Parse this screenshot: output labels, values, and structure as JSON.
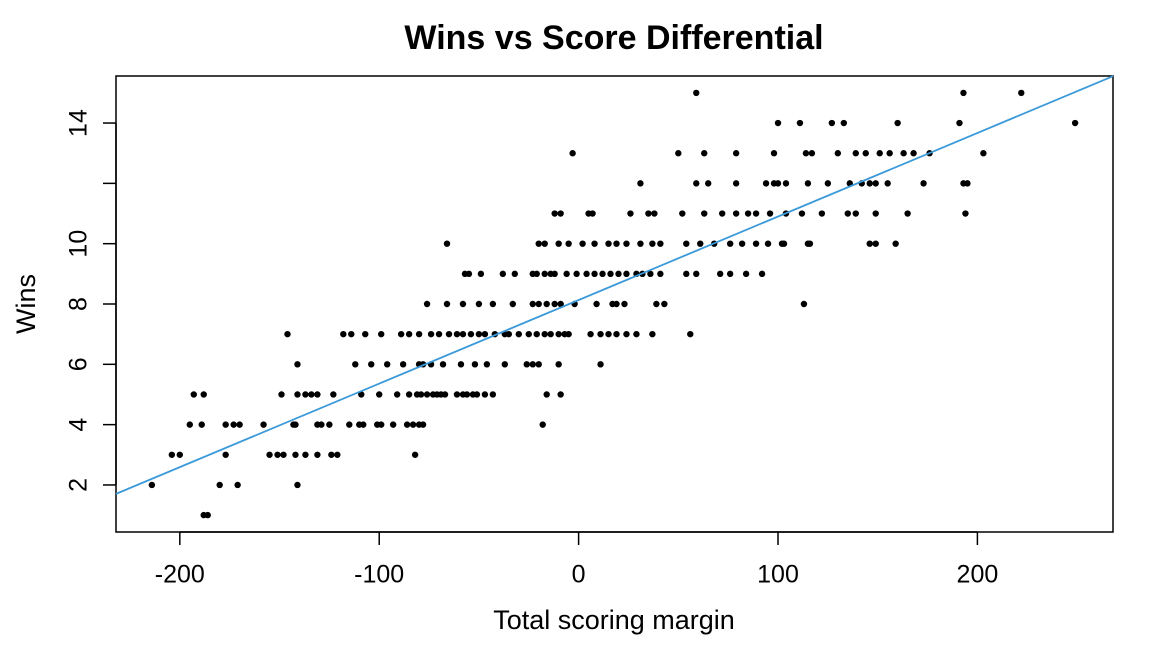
{
  "chart_data": {
    "type": "scatter",
    "title": "Wins vs Score Differential",
    "xlabel": "Total scoring margin",
    "ylabel": "Wins",
    "xlim": [
      -232,
      268
    ],
    "ylim": [
      0.44,
      15.56
    ],
    "xticks": [
      -200,
      -100,
      0,
      100,
      200
    ],
    "yticks": [
      2,
      4,
      6,
      8,
      10,
      {
        "value": 12,
        "label": null
      },
      14
    ],
    "color": "#000000",
    "trendline": {
      "intercept": 8.13,
      "slope": 0.0277,
      "color": "#3a9ad9"
    },
    "x": [
      -188,
      -186,
      -214,
      -180,
      -171,
      -141,
      -204,
      -200,
      -177,
      -155,
      -151,
      -148,
      -142,
      -137,
      -131,
      -124,
      -121,
      -82,
      -195,
      -189,
      -177,
      -173,
      -170,
      -158,
      -143,
      -142,
      -131,
      -129,
      -125,
      -115,
      -110,
      -108,
      -101,
      -99,
      -93,
      -86,
      -83,
      -80,
      -78,
      -18,
      -193,
      -188,
      -149,
      -141,
      -137,
      -134,
      -131,
      -123,
      -109,
      -100,
      -91,
      -85,
      -81,
      -79,
      -76,
      -73,
      -71,
      -69,
      -67,
      -61,
      -58,
      -56,
      -53,
      -51,
      -47,
      -43,
      -16,
      -9,
      -141,
      -112,
      -104,
      -96,
      -88,
      -80,
      -78,
      -74,
      -68,
      -59,
      -52,
      -46,
      -37,
      -26,
      -23,
      -20,
      -10,
      11,
      -146,
      -118,
      -114,
      -107,
      -99,
      -89,
      -85,
      -80,
      -74,
      -70,
      -65,
      -61,
      -58,
      -54,
      -50,
      -47,
      -42,
      -37,
      -35,
      -30,
      -25,
      -21,
      -17,
      -14,
      -10,
      -7,
      -5,
      6,
      11,
      15,
      19,
      24,
      29,
      37,
      56,
      -76,
      -66,
      -58,
      -50,
      -43,
      -33,
      -23,
      -20,
      -16,
      -12,
      -9,
      -2,
      9,
      17,
      19,
      23,
      39,
      43,
      113,
      -57,
      -55,
      -49,
      -38,
      -32,
      -23,
      -21,
      -17,
      -14,
      -12,
      -6,
      -1,
      4,
      8,
      12,
      16,
      20,
      24,
      29,
      32,
      36,
      41,
      54,
      59,
      71,
      76,
      84,
      92,
      -66,
      -20,
      -17,
      -10,
      -5,
      2,
      8,
      15,
      19,
      24,
      31,
      37,
      41,
      54,
      61,
      68,
      76,
      82,
      89,
      95,
      102,
      103,
      115,
      116,
      146,
      149,
      159,
      -12,
      -9,
      5,
      7,
      26,
      35,
      38,
      52,
      63,
      72,
      79,
      85,
      89,
      96,
      104,
      112,
      122,
      135,
      139,
      149,
      165,
      194,
      31,
      59,
      65,
      79,
      94,
      98,
      100,
      104,
      115,
      125,
      136,
      142,
      146,
      149,
      155,
      173,
      193,
      195,
      -3,
      50,
      63,
      79,
      98,
      114,
      117,
      130,
      139,
      144,
      151,
      156,
      163,
      168,
      176,
      203,
      100,
      111,
      127,
      133,
      160,
      191,
      249,
      59,
      193,
      222
    ],
    "values": [
      1,
      1,
      2,
      2,
      2,
      2,
      3,
      3,
      3,
      3,
      3,
      3,
      3,
      3,
      3,
      3,
      3,
      3,
      4,
      4,
      4,
      4,
      4,
      4,
      4,
      4,
      4,
      4,
      4,
      4,
      4,
      4,
      4,
      4,
      4,
      4,
      4,
      4,
      4,
      4,
      5,
      5,
      5,
      5,
      5,
      5,
      5,
      5,
      5,
      5,
      5,
      5,
      5,
      5,
      5,
      5,
      5,
      5,
      5,
      5,
      5,
      5,
      5,
      5,
      5,
      5,
      5,
      5,
      6,
      6,
      6,
      6,
      6,
      6,
      6,
      6,
      6,
      6,
      6,
      6,
      6,
      6,
      6,
      6,
      6,
      6,
      7,
      7,
      7,
      7,
      7,
      7,
      7,
      7,
      7,
      7,
      7,
      7,
      7,
      7,
      7,
      7,
      7,
      7,
      7,
      7,
      7,
      7,
      7,
      7,
      7,
      7,
      7,
      7,
      7,
      7,
      7,
      7,
      7,
      7,
      7,
      8,
      8,
      8,
      8,
      8,
      8,
      8,
      8,
      8,
      8,
      8,
      8,
      8,
      8,
      8,
      8,
      8,
      8,
      8,
      9,
      9,
      9,
      9,
      9,
      9,
      9,
      9,
      9,
      9,
      9,
      9,
      9,
      9,
      9,
      9,
      9,
      9,
      9,
      9,
      9,
      9,
      9,
      9,
      9,
      9,
      9,
      9,
      10,
      10,
      10,
      10,
      10,
      10,
      10,
      10,
      10,
      10,
      10,
      10,
      10,
      10,
      10,
      10,
      10,
      10,
      10,
      10,
      10,
      10,
      10,
      10,
      10,
      10,
      10,
      11,
      11,
      11,
      11,
      11,
      11,
      11,
      11,
      11,
      11,
      11,
      11,
      11,
      11,
      11,
      11,
      11,
      11,
      11,
      11,
      11,
      11,
      12,
      12,
      12,
      12,
      12,
      12,
      12,
      12,
      12,
      12,
      12,
      12,
      12,
      12,
      12,
      12,
      12,
      12,
      13,
      13,
      13,
      13,
      13,
      13,
      13,
      13,
      13,
      13,
      13,
      13,
      13,
      13,
      13,
      13,
      14,
      14,
      14,
      14,
      14,
      14,
      14,
      15,
      15,
      15
    ]
  }
}
